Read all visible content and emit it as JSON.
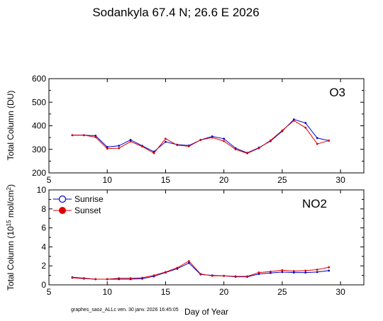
{
  "header": {
    "title": "Sodankyla  67.4 N; 26.6 E   2026",
    "footer": "graphes_saoz_ALLc  ven. 30 janv. 2026 16:45:05"
  },
  "colors": {
    "sunrise": "#0000cc",
    "sunset": "#dd0000",
    "axis": "#000000"
  },
  "chart_data": [
    {
      "type": "line",
      "label": "O3",
      "ylabel": "Total Column  (DU)",
      "xlabel": "",
      "xlim": [
        5,
        32
      ],
      "ylim": [
        200,
        600
      ],
      "xticks": [
        5,
        10,
        15,
        20,
        25,
        30
      ],
      "yticks": [
        200,
        300,
        400,
        500,
        600
      ],
      "grid": false,
      "series": [
        {
          "name": "Sunrise",
          "color": "#0000cc",
          "x": [
            7,
            8,
            9,
            10,
            11,
            12,
            13,
            14,
            15,
            16,
            17,
            18,
            19,
            20,
            21,
            22,
            23,
            24,
            25,
            26,
            27,
            28,
            29
          ],
          "y": [
            360,
            360,
            358,
            310,
            315,
            340,
            315,
            290,
            332,
            320,
            316,
            340,
            355,
            345,
            305,
            285,
            307,
            335,
            377,
            427,
            412,
            348,
            337
          ]
        },
        {
          "name": "Sunset",
          "color": "#dd0000",
          "x": [
            7,
            8,
            9,
            10,
            11,
            12,
            13,
            14,
            15,
            16,
            17,
            18,
            19,
            20,
            21,
            22,
            23,
            24,
            25,
            26,
            27,
            28,
            29
          ],
          "y": [
            360,
            360,
            352,
            303,
            305,
            333,
            312,
            284,
            345,
            318,
            313,
            340,
            350,
            335,
            300,
            283,
            305,
            338,
            380,
            422,
            392,
            323,
            337
          ]
        }
      ]
    },
    {
      "type": "line",
      "label": "NO2",
      "ylabel": "Total Column (10^15 mol/cm^2)",
      "xlabel": "Day of Year",
      "xlim": [
        5,
        32
      ],
      "ylim": [
        0,
        10
      ],
      "xticks": [
        5,
        10,
        15,
        20,
        25,
        30
      ],
      "yticks": [
        0,
        2,
        4,
        6,
        8,
        10
      ],
      "grid": false,
      "legend": {
        "placement": "top-left",
        "entries": [
          "Sunrise",
          "Sunset"
        ]
      },
      "series": [
        {
          "name": "Sunrise",
          "color": "#0000cc",
          "x": [
            7,
            8,
            9,
            10,
            11,
            12,
            13,
            14,
            15,
            16,
            17,
            18,
            19,
            20,
            21,
            22,
            23,
            24,
            25,
            26,
            27,
            28,
            29
          ],
          "y": [
            0.8,
            0.7,
            0.6,
            0.6,
            0.6,
            0.6,
            0.65,
            0.9,
            1.3,
            1.7,
            2.3,
            1.1,
            1.0,
            0.95,
            0.85,
            0.85,
            1.15,
            1.25,
            1.35,
            1.3,
            1.3,
            1.35,
            1.5
          ]
        },
        {
          "name": "Sunset",
          "color": "#dd0000",
          "x": [
            7,
            8,
            9,
            10,
            11,
            12,
            13,
            14,
            15,
            16,
            17,
            18,
            19,
            20,
            21,
            22,
            23,
            24,
            25,
            26,
            27,
            28,
            29
          ],
          "y": [
            0.75,
            0.65,
            0.6,
            0.6,
            0.7,
            0.7,
            0.75,
            1.0,
            1.35,
            1.8,
            2.5,
            1.15,
            0.95,
            0.95,
            0.9,
            0.9,
            1.3,
            1.4,
            1.55,
            1.45,
            1.5,
            1.6,
            1.85
          ]
        }
      ]
    }
  ]
}
